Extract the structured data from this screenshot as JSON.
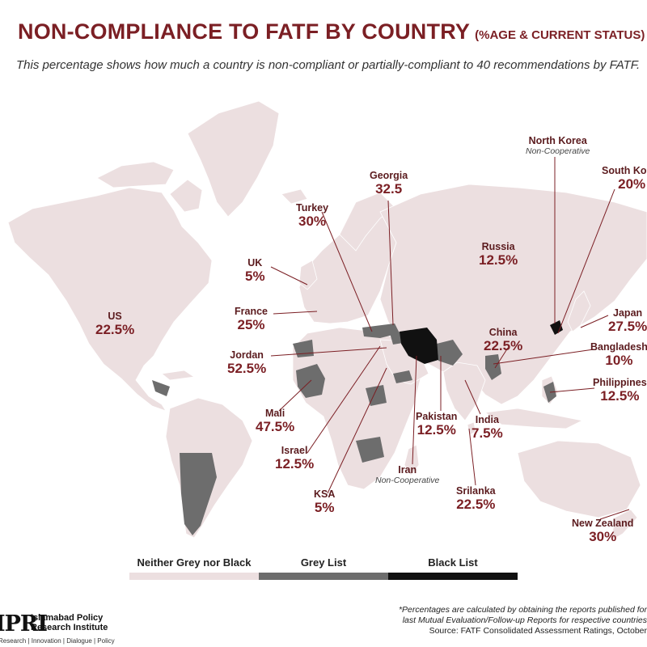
{
  "header": {
    "title": "NON-COMPLIANCE TO FATF BY COUNTRY",
    "title_suffix": "(%AGE & CURRENT STATUS)",
    "subtitle": "This percentage shows how much a country is non-compliant or partially-compliant to 40 recommendations by FATF."
  },
  "colors": {
    "neither": "#ecdfe0",
    "grey": "#6d6d6d",
    "black": "#111111",
    "ocean": "#ffffff",
    "accent": "#7b1f24",
    "leader": "#7b1f24"
  },
  "map_data": {
    "countries": [
      {
        "name": "US",
        "value": "22.5%",
        "status": "",
        "list": "neither"
      },
      {
        "name": "UK",
        "value": "5%",
        "status": "",
        "list": "neither"
      },
      {
        "name": "France",
        "value": "25%",
        "status": "",
        "list": "neither"
      },
      {
        "name": "Jordan",
        "value": "52.5%",
        "status": "",
        "list": "neither"
      },
      {
        "name": "Mali",
        "value": "47.5%",
        "status": "",
        "list": "grey"
      },
      {
        "name": "Israel",
        "value": "12.5%",
        "status": "",
        "list": "neither"
      },
      {
        "name": "KSA",
        "value": "5%",
        "status": "",
        "list": "neither"
      },
      {
        "name": "Turkey",
        "value": "30%",
        "status": "",
        "list": "grey"
      },
      {
        "name": "Georgia",
        "value": "32.5",
        "status": "",
        "list": "neither"
      },
      {
        "name": "Russia",
        "value": "12.5%",
        "status": "",
        "list": "neither"
      },
      {
        "name": "North Korea",
        "value": "",
        "status": "Non-Cooperative",
        "list": "black"
      },
      {
        "name": "South Korea",
        "value": "20%",
        "status": "",
        "list": "neither"
      },
      {
        "name": "Japan",
        "value": "27.5%",
        "status": "",
        "list": "neither"
      },
      {
        "name": "Bangladesh",
        "value": "10%",
        "status": "",
        "list": "neither"
      },
      {
        "name": "Philippines",
        "value": "12.5%",
        "status": "",
        "list": "grey"
      },
      {
        "name": "China",
        "value": "22.5%",
        "status": "",
        "list": "neither"
      },
      {
        "name": "Pakistan",
        "value": "12.5%",
        "status": "",
        "list": "grey"
      },
      {
        "name": "India",
        "value": "7.5%",
        "status": "",
        "list": "neither"
      },
      {
        "name": "Iran",
        "value": "",
        "status": "Non-Cooperative",
        "list": "black"
      },
      {
        "name": "Srilanka",
        "value": "22.5%",
        "status": "",
        "list": "neither"
      },
      {
        "name": "New Zealand",
        "value": "30%",
        "status": "",
        "list": "neither"
      }
    ]
  },
  "legend": [
    {
      "label": "Neither Grey nor Black",
      "color": "#ecdfe0"
    },
    {
      "label": "Grey List",
      "color": "#6d6d6d"
    },
    {
      "label": "Black List",
      "color": "#111111"
    }
  ],
  "logo": {
    "mark": "IPRI",
    "name_line1": "Islamabad Policy",
    "name_line2": "Research Institute",
    "tagline": "Research | Innovation | Dialogue | Policy"
  },
  "footnote": {
    "line1": "*Percentages are calculated by obtaining the reports published for",
    "line2": "last Mutual Evaluation/Follow-up Reports for respective countries",
    "source": "Source: FATF Consolidated Assessment Ratings, October"
  }
}
